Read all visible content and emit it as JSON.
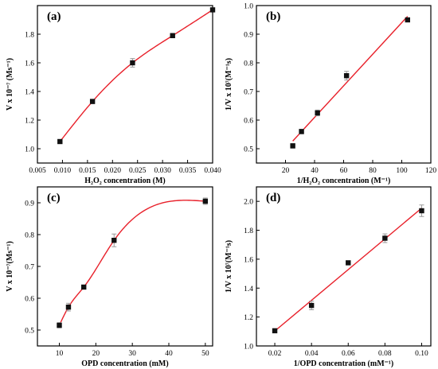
{
  "chart_data": [
    {
      "type": "scatter",
      "panel_label": "(a)",
      "xlabel": "H₂O₂ concentration (M)",
      "ylabel": "V x 10⁻⁷ (Ms⁻¹)",
      "xlim": [
        0.005,
        0.04
      ],
      "ylim": [
        0.9,
        2.0
      ],
      "xticks": [
        0.005,
        0.01,
        0.015,
        0.02,
        0.025,
        0.03,
        0.035,
        0.04
      ],
      "xtick_labels": [
        "0.005",
        "0.010",
        "0.015",
        "0.020",
        "0.025",
        "0.030",
        "0.035",
        "0.040"
      ],
      "yticks": [
        1.0,
        1.2,
        1.4,
        1.6,
        1.8
      ],
      "ytick_labels": [
        "1.0",
        "1.2",
        "1.4",
        "1.6",
        "1.8"
      ],
      "points": [
        {
          "x": 0.0095,
          "y": 1.05,
          "err": 0.01
        },
        {
          "x": 0.016,
          "y": 1.33,
          "err": 0.015
        },
        {
          "x": 0.024,
          "y": 1.6,
          "err": 0.03
        },
        {
          "x": 0.032,
          "y": 1.79,
          "err": 0.015
        },
        {
          "x": 0.04,
          "y": 1.97,
          "err": 0.01
        }
      ],
      "fit": "curve"
    },
    {
      "type": "scatter",
      "panel_label": "(b)",
      "xlabel": "1/H₂O₂ concentration (M⁻¹)",
      "ylabel": "1/V x 10⁷(M⁻¹s)",
      "xlim": [
        0,
        120
      ],
      "ylim": [
        0.45,
        1.0
      ],
      "xticks": [
        20,
        40,
        60,
        80,
        100,
        120
      ],
      "xtick_labels": [
        "20",
        "40",
        "60",
        "80",
        "100",
        "120"
      ],
      "yticks": [
        0.5,
        0.6,
        0.7,
        0.8,
        0.9,
        1.0
      ],
      "ytick_labels": [
        "0.5",
        "0.6",
        "0.7",
        "0.8",
        "0.9",
        "1.0"
      ],
      "points": [
        {
          "x": 25,
          "y": 0.51,
          "err": 0.008
        },
        {
          "x": 31,
          "y": 0.56,
          "err": 0.008
        },
        {
          "x": 42,
          "y": 0.625,
          "err": 0.01
        },
        {
          "x": 62,
          "y": 0.755,
          "err": 0.015
        },
        {
          "x": 104,
          "y": 0.95,
          "err": 0.005
        }
      ],
      "fit": "linear"
    },
    {
      "type": "scatter",
      "panel_label": "(c)",
      "xlabel": "OPD concentration (mM)",
      "ylabel": "V x 10⁻⁷(Ms⁻¹)",
      "xlim": [
        4,
        52
      ],
      "ylim": [
        0.45,
        0.95
      ],
      "xticks": [
        10,
        20,
        30,
        40,
        50
      ],
      "xtick_labels": [
        "10",
        "20",
        "30",
        "40",
        "50"
      ],
      "yticks": [
        0.5,
        0.6,
        0.7,
        0.8,
        0.9
      ],
      "ytick_labels": [
        "0.5",
        "0.6",
        "0.7",
        "0.8",
        "0.9"
      ],
      "points": [
        {
          "x": 10,
          "y": 0.515,
          "err": 0.008
        },
        {
          "x": 12.5,
          "y": 0.572,
          "err": 0.012
        },
        {
          "x": 16.7,
          "y": 0.635,
          "err": 0.006
        },
        {
          "x": 25,
          "y": 0.782,
          "err": 0.02
        },
        {
          "x": 50,
          "y": 0.905,
          "err": 0.01
        }
      ],
      "fit": "curve"
    },
    {
      "type": "scatter",
      "panel_label": "(d)",
      "xlabel": "1/OPD concentration (mM⁻¹)",
      "ylabel": "1/V x 10⁷(M⁻¹s)",
      "xlim": [
        0.01,
        0.105
      ],
      "ylim": [
        1.0,
        2.1
      ],
      "xticks": [
        0.02,
        0.04,
        0.06,
        0.08,
        0.1
      ],
      "xtick_labels": [
        "0.02",
        "0.04",
        "0.06",
        "0.08",
        "0.10"
      ],
      "yticks": [
        1.0,
        1.2,
        1.4,
        1.6,
        1.8,
        2.0
      ],
      "ytick_labels": [
        "1.0",
        "1.2",
        "1.4",
        "1.6",
        "1.8",
        "2.0"
      ],
      "points": [
        {
          "x": 0.02,
          "y": 1.105,
          "err": 0.01
        },
        {
          "x": 0.04,
          "y": 1.28,
          "err": 0.03
        },
        {
          "x": 0.06,
          "y": 1.575,
          "err": 0.01
        },
        {
          "x": 0.08,
          "y": 1.745,
          "err": 0.03
        },
        {
          "x": 0.1,
          "y": 1.935,
          "err": 0.04
        }
      ],
      "fit": "linear"
    }
  ],
  "colors": {
    "fit": "#e8202a",
    "marker": "#111111",
    "error": "#9a9a9a",
    "axis": "#000000"
  }
}
